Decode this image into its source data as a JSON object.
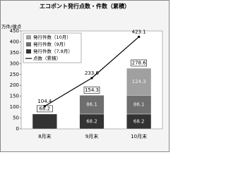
{
  "chart_data": {
    "type": "bar",
    "stacked": true,
    "title": "エコポント発行点数・件数（累積）",
    "y_label": "万件/億点",
    "categories": [
      "8月末",
      "9月末",
      "10月末"
    ],
    "series": [
      {
        "name": "発行件数（10月）",
        "color": "#a0a0a0",
        "values": [
          null,
          null,
          124.3
        ]
      },
      {
        "name": "発行件数（9月）",
        "color": "#6e6e6e",
        "values": [
          null,
          86.1,
          86.1
        ]
      },
      {
        "name": "発行件数（7,8月）",
        "color": "#333333",
        "values": [
          68.2,
          68.2,
          68.2
        ]
      },
      {
        "name": "点数（累積）",
        "color": "#000000",
        "type": "line",
        "values": [
          104.4,
          233.6,
          423.1
        ]
      }
    ],
    "totals": [
      68.2,
      154.3,
      278.6
    ],
    "ylim": [
      0,
      450
    ],
    "yticks": [
      0,
      50,
      100,
      150,
      200,
      250,
      300,
      350,
      400,
      450
    ],
    "grid": false,
    "legend": "upper left"
  }
}
